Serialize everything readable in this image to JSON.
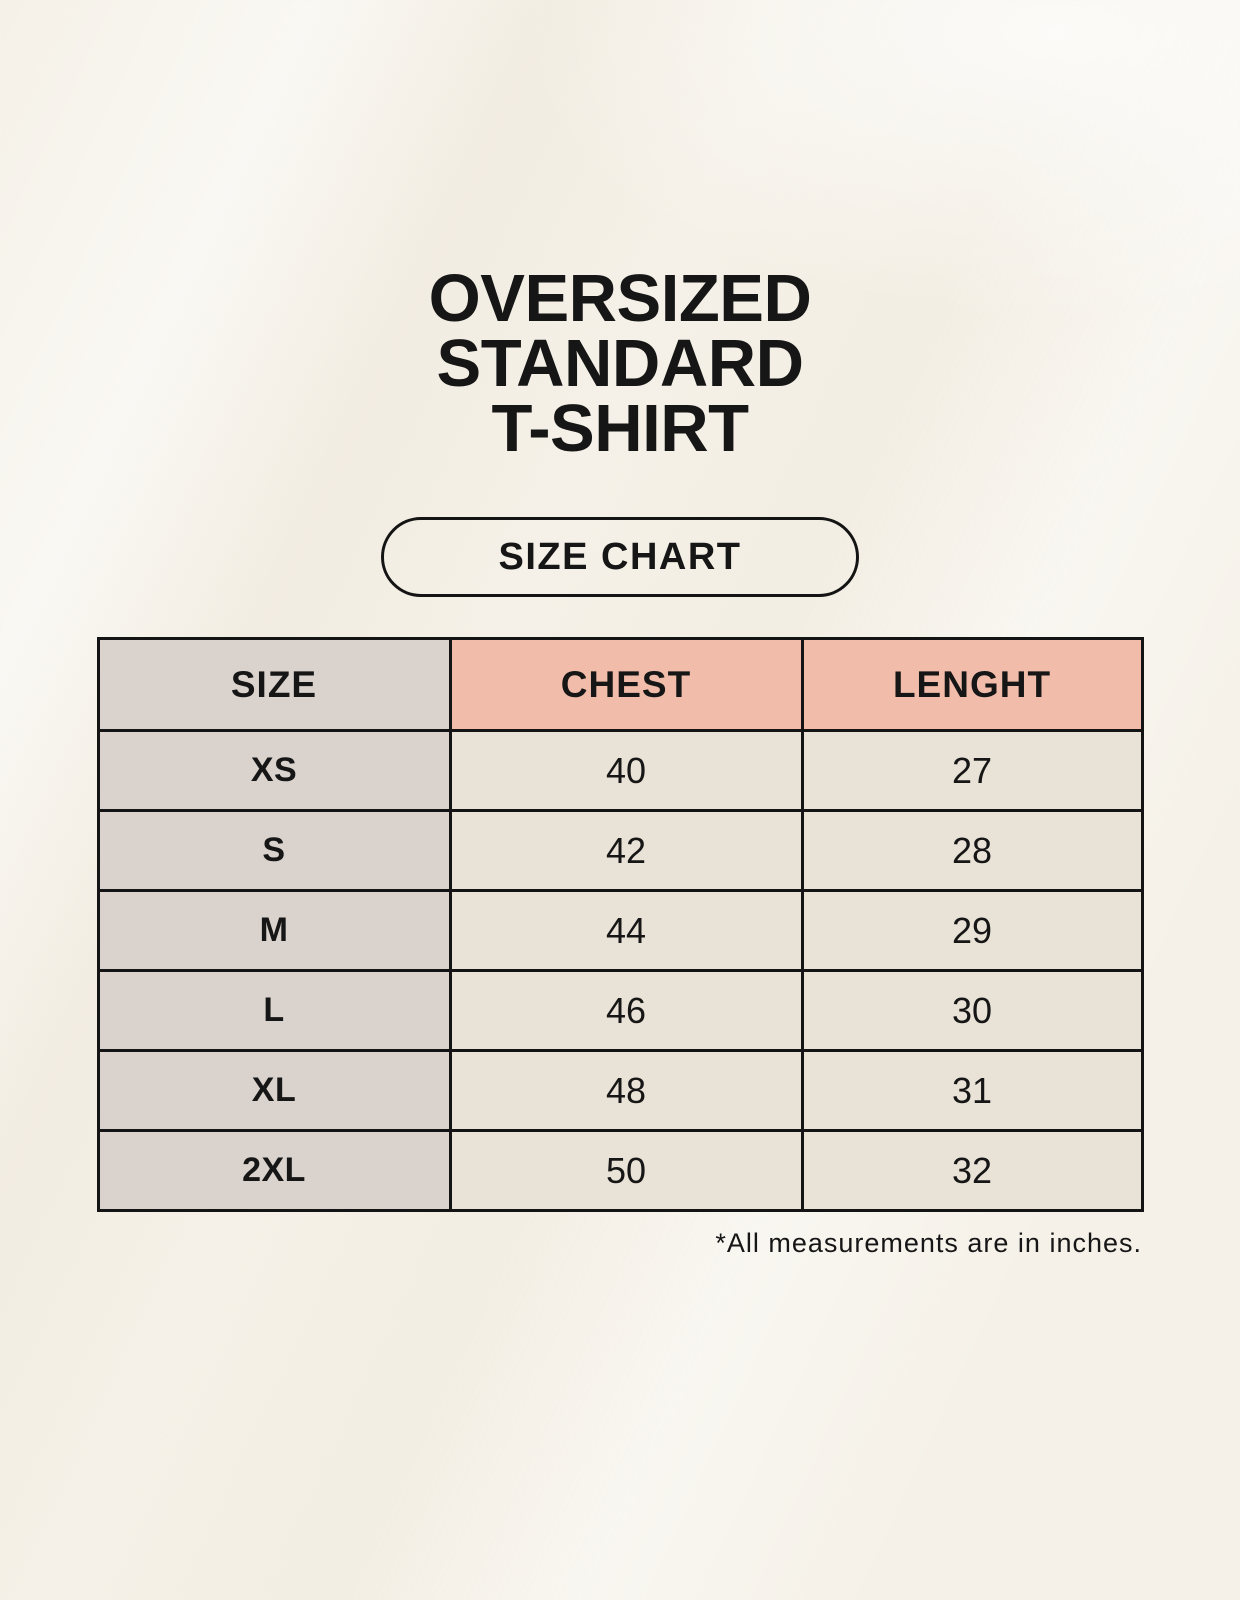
{
  "title": {
    "text": "OVERSIZED\nSTANDARD\nT-SHIRT"
  },
  "button": {
    "label": "SIZE CHART"
  },
  "table": {
    "headers": [
      "SIZE",
      "CHEST",
      "LENGHT"
    ],
    "rows": [
      {
        "size": "XS",
        "chest": "40",
        "length": "27"
      },
      {
        "size": "S",
        "chest": "42",
        "length": "28"
      },
      {
        "size": "M",
        "chest": "44",
        "length": "29"
      },
      {
        "size": "L",
        "chest": "46",
        "length": "30"
      },
      {
        "size": "XL",
        "chest": "48",
        "length": "31"
      },
      {
        "size": "2XL",
        "chest": "50",
        "length": "32"
      }
    ]
  },
  "footnote": "*All measurements are in inches.",
  "colors": {
    "page-bg": "#f5f1e8",
    "header-pink": "#f1bcaa",
    "cell-gray": "#d9d2cd",
    "cell-cream": "#e9e2d6",
    "border": "#141414",
    "text": "#161616"
  },
  "chart_data": {
    "type": "table",
    "title": "OVERSIZED STANDARD T-SHIRT",
    "columns": [
      "SIZE",
      "CHEST",
      "LENGHT"
    ],
    "rows": [
      [
        "XS",
        40,
        27
      ],
      [
        "S",
        42,
        28
      ],
      [
        "M",
        44,
        29
      ],
      [
        "L",
        46,
        30
      ],
      [
        "XL",
        48,
        31
      ],
      [
        "2XL",
        50,
        32
      ]
    ],
    "note": "*All measurements are in inches."
  }
}
